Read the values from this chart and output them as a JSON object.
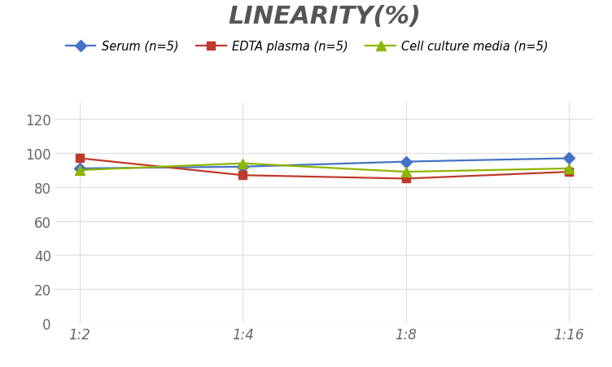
{
  "title": "LINEARITY(%)",
  "x_labels": [
    "1:2",
    "1:4",
    "1:8",
    "1:16"
  ],
  "series": [
    {
      "label": "Serum (n=5)",
      "values": [
        91,
        92,
        95,
        97
      ],
      "color": "#4472C4",
      "marker": "D",
      "marker_size": 7
    },
    {
      "label": "EDTA plasma (n=5)",
      "values": [
        97,
        87,
        85,
        89
      ],
      "color": "#C0392B",
      "marker": "s",
      "marker_size": 7
    },
    {
      "label": "Cell culture media (n=5)",
      "values": [
        90,
        94,
        89,
        91
      ],
      "color": "#8DB600",
      "marker": "^",
      "marker_size": 8
    }
  ],
  "ylim": [
    0,
    130
  ],
  "yticks": [
    0,
    20,
    40,
    60,
    80,
    100,
    120
  ],
  "grid_color": "#DDDDDD",
  "background_color": "#FFFFFF",
  "title_fontsize": 22,
  "title_color": "#555555",
  "legend_fontsize": 10.5,
  "tick_fontsize": 12
}
